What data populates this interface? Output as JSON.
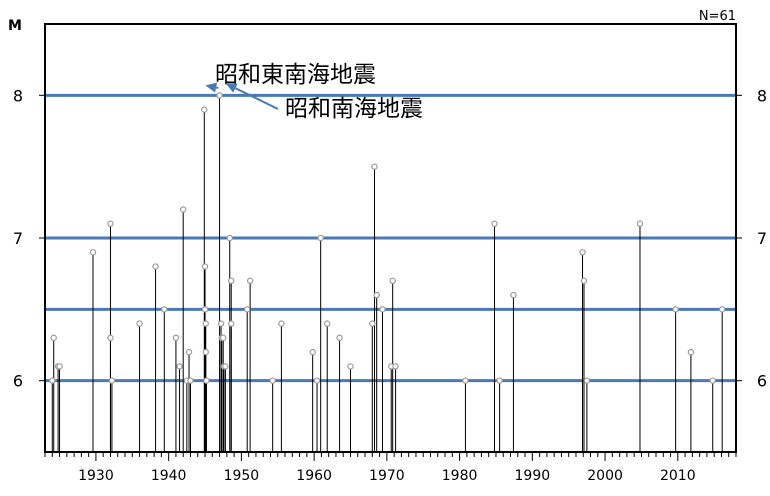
{
  "chart_data": {
    "type": "scatter",
    "style": "stem",
    "title": "",
    "n_label": "N=61",
    "ylabel": "M",
    "xlabel": "",
    "xlim": [
      1923,
      2018
    ],
    "ylim": [
      5.5,
      8.5
    ],
    "x_ticks": [
      1930,
      1940,
      1950,
      1960,
      1970,
      1980,
      1990,
      2000,
      2010
    ],
    "y_ticks": [
      6,
      7,
      8
    ],
    "reference_lines": [
      8.0,
      7.0,
      6.5,
      6.0
    ],
    "reference_line_color": "#4a7ab5",
    "stem_color": "#000000",
    "marker_color": "#9a9a9a",
    "grid": false,
    "points": [
      {
        "x": 1924.0,
        "y": 6.0
      },
      {
        "x": 1924.2,
        "y": 6.3
      },
      {
        "x": 1924.8,
        "y": 6.1
      },
      {
        "x": 1925.0,
        "y": 6.1
      },
      {
        "x": 1929.6,
        "y": 6.9
      },
      {
        "x": 1932.0,
        "y": 7.1
      },
      {
        "x": 1932.0,
        "y": 6.3
      },
      {
        "x": 1932.2,
        "y": 6.0
      },
      {
        "x": 1936.0,
        "y": 6.4
      },
      {
        "x": 1938.2,
        "y": 6.8
      },
      {
        "x": 1939.4,
        "y": 6.5
      },
      {
        "x": 1941.0,
        "y": 6.3
      },
      {
        "x": 1941.5,
        "y": 6.1
      },
      {
        "x": 1942.0,
        "y": 7.2
      },
      {
        "x": 1942.5,
        "y": 6.0
      },
      {
        "x": 1942.8,
        "y": 6.2
      },
      {
        "x": 1943.0,
        "y": 6.0
      },
      {
        "x": 1944.9,
        "y": 7.9
      },
      {
        "x": 1945.0,
        "y": 6.8
      },
      {
        "x": 1945.0,
        "y": 6.5
      },
      {
        "x": 1945.1,
        "y": 6.4
      },
      {
        "x": 1945.1,
        "y": 6.2
      },
      {
        "x": 1945.2,
        "y": 6.0
      },
      {
        "x": 1947.0,
        "y": 8.0
      },
      {
        "x": 1947.2,
        "y": 6.4
      },
      {
        "x": 1947.3,
        "y": 6.3
      },
      {
        "x": 1947.5,
        "y": 6.3
      },
      {
        "x": 1947.6,
        "y": 6.1
      },
      {
        "x": 1947.8,
        "y": 6.1
      },
      {
        "x": 1948.4,
        "y": 7.0
      },
      {
        "x": 1948.6,
        "y": 6.7
      },
      {
        "x": 1948.6,
        "y": 6.4
      },
      {
        "x": 1950.8,
        "y": 6.5
      },
      {
        "x": 1951.2,
        "y": 6.7
      },
      {
        "x": 1954.3,
        "y": 6.0
      },
      {
        "x": 1955.5,
        "y": 6.4
      },
      {
        "x": 1959.8,
        "y": 6.2
      },
      {
        "x": 1960.4,
        "y": 6.0
      },
      {
        "x": 1960.9,
        "y": 7.0
      },
      {
        "x": 1961.8,
        "y": 6.4
      },
      {
        "x": 1963.5,
        "y": 6.3
      },
      {
        "x": 1965.0,
        "y": 6.1
      },
      {
        "x": 1968.0,
        "y": 6.4
      },
      {
        "x": 1968.3,
        "y": 7.5
      },
      {
        "x": 1968.6,
        "y": 6.6
      },
      {
        "x": 1969.4,
        "y": 6.5
      },
      {
        "x": 1970.6,
        "y": 6.1
      },
      {
        "x": 1970.8,
        "y": 6.7
      },
      {
        "x": 1971.2,
        "y": 6.1
      },
      {
        "x": 1980.8,
        "y": 6.0
      },
      {
        "x": 1984.8,
        "y": 7.1
      },
      {
        "x": 1985.5,
        "y": 6.0
      },
      {
        "x": 1987.4,
        "y": 6.6
      },
      {
        "x": 1996.9,
        "y": 6.9
      },
      {
        "x": 1997.1,
        "y": 6.7
      },
      {
        "x": 1997.5,
        "y": 6.0
      },
      {
        "x": 2004.8,
        "y": 7.1
      },
      {
        "x": 2009.7,
        "y": 6.5
      },
      {
        "x": 2011.8,
        "y": 6.2
      },
      {
        "x": 2014.8,
        "y": 6.0
      },
      {
        "x": 2016.1,
        "y": 6.5
      }
    ],
    "annotations": [
      {
        "text": "昭和東南海地震",
        "target": {
          "x": 1944.9,
          "y": 8.0
        }
      },
      {
        "text": "昭和南海地震",
        "target": {
          "x": 1947.0,
          "y": 8.0
        }
      }
    ],
    "annotation_arrow_color": "#4a7ab5"
  }
}
